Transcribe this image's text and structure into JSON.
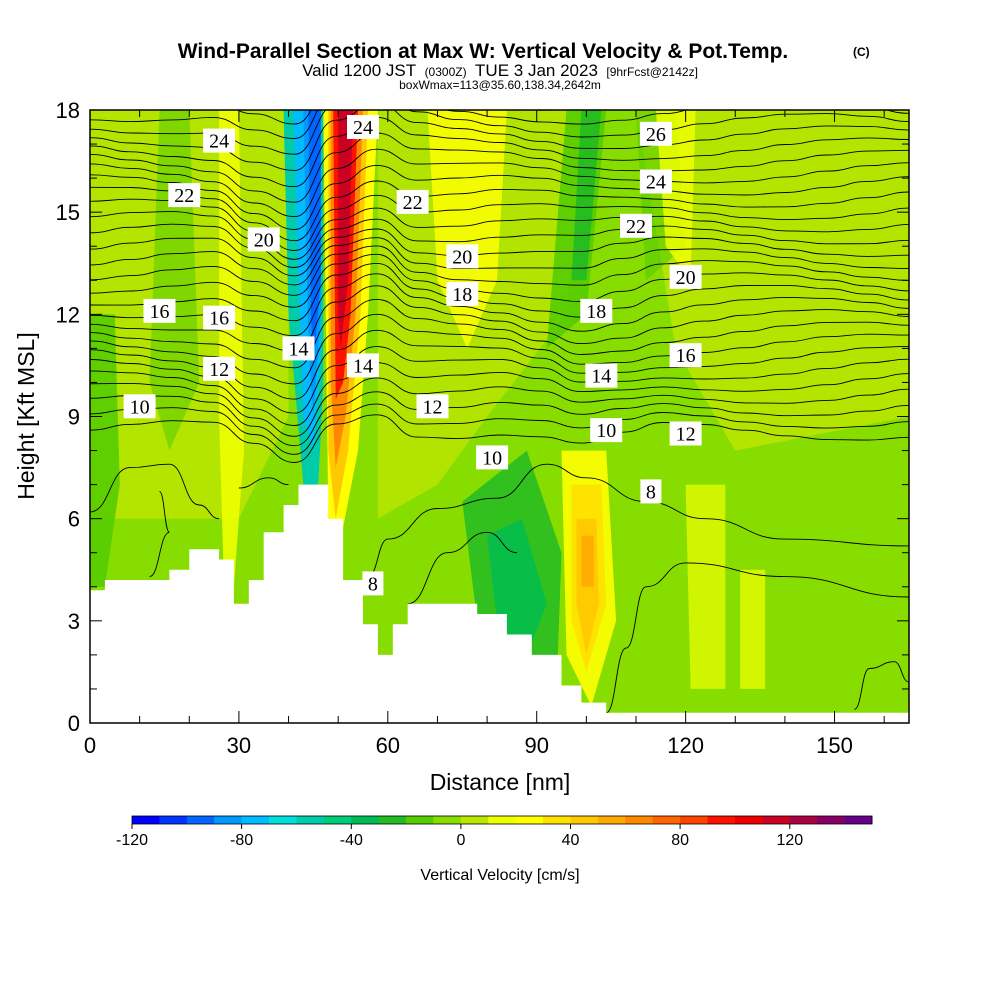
{
  "chart_data": {
    "type": "heatmap",
    "title": "Wind-Parallel Section at Max W: Vertical Velocity & Pot.Temp.",
    "title_mark": "(C)",
    "subtitle_parts": [
      "Valid 1200 JST",
      "(0300Z)",
      "TUE 3 Jan 2023",
      "[9hrFcst@2142z]"
    ],
    "subtitle2": "boxWmax=113@35.60,138.34,2642m",
    "xlabel": "Distance [nm]",
    "ylabel": "Height [Kft MSL]",
    "xlim": [
      0,
      165
    ],
    "ylim": [
      0,
      18
    ],
    "x_ticks": [
      "0",
      "30",
      "60",
      "90",
      "120",
      "150"
    ],
    "y_ticks": [
      "0",
      "3",
      "6",
      "9",
      "12",
      "15",
      "18"
    ],
    "colorbar": {
      "label": "Vertical Velocity [cm/s]",
      "range": [
        -120,
        150
      ],
      "step": 10,
      "tick_labels": [
        "-120",
        "-80",
        "-40",
        "0",
        "40",
        "80",
        "120"
      ],
      "colors": [
        "#0000ff",
        "#0033ff",
        "#0066ff",
        "#0099ff",
        "#00bbff",
        "#00dddd",
        "#00ccaa",
        "#00cc77",
        "#00bb55",
        "#22bb22",
        "#55cc00",
        "#88dd00",
        "#bbe600",
        "#eeff00",
        "#ffff00",
        "#ffe000",
        "#ffc800",
        "#ffaa00",
        "#ff8800",
        "#ff6600",
        "#ff4400",
        "#ff1100",
        "#ee0000",
        "#cc0022",
        "#aa0044",
        "#880066",
        "#660088"
      ]
    },
    "terrain_kft": [
      [
        0,
        3.9
      ],
      [
        3,
        4.2
      ],
      [
        16,
        4.5
      ],
      [
        20,
        5.1
      ],
      [
        26,
        4.8
      ],
      [
        29,
        3.5
      ],
      [
        32,
        4.2
      ],
      [
        35,
        5.6
      ],
      [
        39,
        6.4
      ],
      [
        42,
        7.0
      ],
      [
        48,
        6.0
      ],
      [
        51,
        4.2
      ],
      [
        55,
        2.9
      ],
      [
        58,
        2.0
      ],
      [
        61,
        2.9
      ],
      [
        64,
        3.5
      ],
      [
        78,
        3.2
      ],
      [
        84,
        2.6
      ],
      [
        89,
        2.0
      ],
      [
        95,
        1.1
      ],
      [
        99,
        0.6
      ],
      [
        104,
        0.3
      ],
      [
        165,
        0.3
      ]
    ],
    "theta_labels": [
      {
        "text": "24",
        "x": 26,
        "y": 17.1
      },
      {
        "text": "22",
        "x": 19,
        "y": 15.5
      },
      {
        "text": "20",
        "x": 35,
        "y": 14.2
      },
      {
        "text": "16",
        "x": 14,
        "y": 12.1
      },
      {
        "text": "16",
        "x": 26,
        "y": 11.9
      },
      {
        "text": "12",
        "x": 26,
        "y": 10.4
      },
      {
        "text": "10",
        "x": 10,
        "y": 9.3
      },
      {
        "text": "14",
        "x": 42,
        "y": 11.0
      },
      {
        "text": "24",
        "x": 55,
        "y": 17.5
      },
      {
        "text": "14",
        "x": 55,
        "y": 10.5
      },
      {
        "text": "22",
        "x": 65,
        "y": 15.3
      },
      {
        "text": "20",
        "x": 75,
        "y": 13.7
      },
      {
        "text": "18",
        "x": 75,
        "y": 12.6
      },
      {
        "text": "12",
        "x": 69,
        "y": 9.3
      },
      {
        "text": "10",
        "x": 81,
        "y": 7.8
      },
      {
        "text": "8",
        "x": 57,
        "y": 4.1
      },
      {
        "text": "26",
        "x": 114,
        "y": 17.3
      },
      {
        "text": "24",
        "x": 114,
        "y": 15.9
      },
      {
        "text": "22",
        "x": 110,
        "y": 14.6
      },
      {
        "text": "20",
        "x": 120,
        "y": 13.1
      },
      {
        "text": "18",
        "x": 102,
        "y": 12.1
      },
      {
        "text": "16",
        "x": 120,
        "y": 10.8
      },
      {
        "text": "14",
        "x": 103,
        "y": 10.2
      },
      {
        "text": "10",
        "x": 104,
        "y": 8.6
      },
      {
        "text": "12",
        "x": 120,
        "y": 8.5
      },
      {
        "text": "8",
        "x": 113,
        "y": 6.8
      }
    ]
  }
}
